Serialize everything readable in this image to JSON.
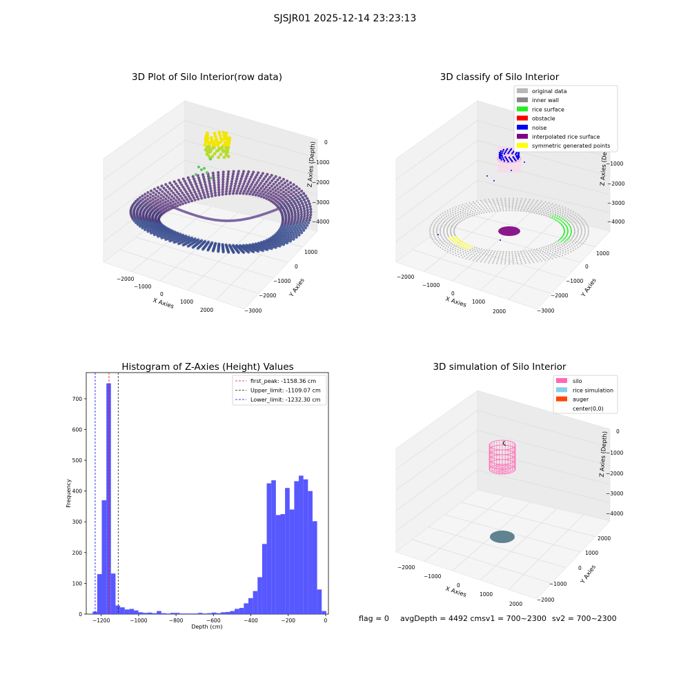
{
  "suptitle": "SJSJR01 2025-12-14 23:23:13",
  "footer": {
    "flag": "flag = 0",
    "avg": "avgDepth = 4492 cmsv1 = 700~2300",
    "sv2": "sv2 = 700~2300"
  },
  "colors": {
    "hist": "#4a4aff",
    "first_peak": "#ff0000",
    "upper_limit": "#1a1a1a",
    "lower_limit": "#0000ff",
    "original": "#b8b8b8",
    "inner_wall": "#888888",
    "rice_surface": "#22ee22",
    "obstacle": "#ff0000",
    "noise": "#0000ee",
    "interpolated": "#800080",
    "symmetric": "#ffff00",
    "silo": "#ff69b4",
    "rice_sim": "#87ceeb",
    "auger": "#ff4500",
    "floor_disc": "#5f8390"
  },
  "chart_data": [
    {
      "type": "scatter3d",
      "title": "3D Plot of Silo Interior(row data)",
      "xlabel": "X Axies",
      "ylabel": "Y Axies",
      "zlabel": "Z Axies (Depth)",
      "x_ticks": [
        "−2000",
        "−1000",
        "0",
        "1000",
        "2000"
      ],
      "y_ticks": [
        "1000",
        "0",
        "−1000",
        "−2000",
        "−3000"
      ],
      "z_ticks": [
        "0",
        "−1000",
        "−2000",
        "−3000",
        "−4000"
      ]
    },
    {
      "type": "scatter3d",
      "title": "3D classify of Silo Interior",
      "xlabel": "X Axies",
      "ylabel": "Y Axies",
      "zlabel": "Z Axies (Depth)",
      "x_ticks": [
        "−2000",
        "−1000",
        "0",
        "1000",
        "2000"
      ],
      "y_ticks": [
        "1000",
        "0",
        "−1000",
        "−2000",
        "−3000"
      ],
      "z_ticks": [
        "0",
        "−1000",
        "−2000",
        "−3000",
        "−4000"
      ],
      "legend": [
        "original data",
        "inner wall",
        "rice surface",
        "obstacle",
        "noise",
        "interpolated rice surface",
        "symmetric generated points"
      ],
      "legend_position": "top-right"
    },
    {
      "type": "bar",
      "title": "Histogram of Z-Axies (Height) Values",
      "xlabel": "Depth (cm)",
      "ylabel": "Frequency",
      "xlim": [
        -1280,
        15
      ],
      "ylim": [
        0,
        785
      ],
      "x_ticks": [
        -1200,
        -1000,
        -800,
        -600,
        -400,
        -200,
        0
      ],
      "x_tick_labels": [
        "−1200",
        "−1000",
        "−800",
        "−600",
        "−400",
        "−200",
        "0"
      ],
      "y_ticks": [
        0,
        100,
        200,
        300,
        400,
        500,
        600,
        700
      ],
      "bin_width": 24.5,
      "bins": [
        [
          -1246,
          8
        ],
        [
          -1221.5,
          130
        ],
        [
          -1197,
          370
        ],
        [
          -1172.5,
          750
        ],
        [
          -1148,
          132
        ],
        [
          -1123.5,
          28
        ],
        [
          -1099,
          22
        ],
        [
          -1074.5,
          15
        ],
        [
          -1050,
          17
        ],
        [
          -1025.5,
          12
        ],
        [
          -1001,
          6
        ],
        [
          -976.5,
          4
        ],
        [
          -952,
          5
        ],
        [
          -927.5,
          3
        ],
        [
          -903,
          10
        ],
        [
          -878.5,
          3
        ],
        [
          -854,
          2
        ],
        [
          -829.5,
          4
        ],
        [
          -805,
          4
        ],
        [
          -780.5,
          2
        ],
        [
          -756,
          2
        ],
        [
          -731.5,
          2
        ],
        [
          -707,
          2
        ],
        [
          -682.5,
          4
        ],
        [
          -658,
          2
        ],
        [
          -633.5,
          3
        ],
        [
          -609,
          5
        ],
        [
          -584.5,
          3
        ],
        [
          -560,
          6
        ],
        [
          -535.5,
          7
        ],
        [
          -511,
          10
        ],
        [
          -486.5,
          17
        ],
        [
          -462,
          20
        ],
        [
          -437.5,
          35
        ],
        [
          -413,
          52
        ],
        [
          -388.5,
          75
        ],
        [
          -364,
          120
        ],
        [
          -339.5,
          228
        ],
        [
          -315,
          425
        ],
        [
          -290.5,
          435
        ],
        [
          -266,
          322
        ],
        [
          -241.5,
          325
        ],
        [
          -217,
          410
        ],
        [
          -192.5,
          340
        ],
        [
          -168,
          432
        ],
        [
          -143.5,
          450
        ],
        [
          -119,
          438
        ],
        [
          -94.5,
          400
        ],
        [
          -70,
          302
        ],
        [
          -45.5,
          80
        ],
        [
          -21,
          10
        ]
      ],
      "vlines": [
        {
          "name": "first_peak: -1158.36 cm",
          "x": -1158.36,
          "style": "first_peak"
        },
        {
          "name": "Upper_limit: -1109.07 cm",
          "x": -1109.07,
          "style": "upper_limit"
        },
        {
          "name": "Lower_limit: -1232.30 cm",
          "x": -1232.3,
          "style": "lower_limit"
        }
      ],
      "legend_position": "top-right"
    },
    {
      "type": "scatter3d",
      "title": "3D simulation of Silo Interior",
      "xlabel": "X Axies",
      "ylabel": "Y Axies",
      "zlabel": "Z Axies (Depth)",
      "x_ticks": [
        "−2000",
        "−1000",
        "0",
        "1000",
        "2000"
      ],
      "y_ticks": [
        "2000",
        "1000",
        "0",
        "−1000",
        "−2000"
      ],
      "z_ticks": [
        "0",
        "−1000",
        "−2000",
        "−3000",
        "−4000"
      ],
      "legend": [
        "silo",
        "rice simulation",
        "auger",
        "center(0,0)"
      ],
      "legend_position": "top-right"
    }
  ]
}
